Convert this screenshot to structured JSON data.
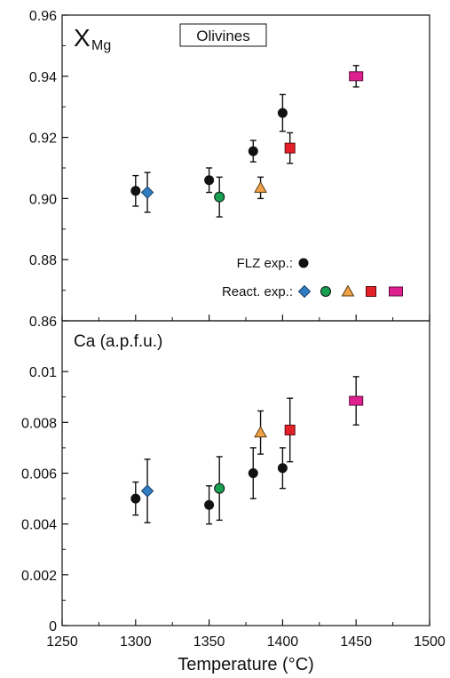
{
  "chart_data": [
    {
      "type": "scatter",
      "panel": "top",
      "title": "Olivines",
      "panel_label": "X",
      "panel_label_sub": "Mg",
      "xlabel": "Temperature (°C)",
      "xlim": [
        1250,
        1500
      ],
      "ylim": [
        0.86,
        0.96
      ],
      "y_ticks": [
        "0.86",
        "0.88",
        "0.90",
        "0.92",
        "0.94",
        "0.96"
      ],
      "grid": false,
      "legend": {
        "placement": "bottom-right",
        "entries": [
          {
            "label": "FLZ exp.:",
            "markers": [
              "circle-black"
            ]
          },
          {
            "label": "React. exp.:",
            "markers": [
              "diamond-blue",
              "circle-green",
              "triangle-orange",
              "square-red",
              "rect-magenta"
            ]
          }
        ]
      },
      "series": [
        {
          "name": "FLZ exp.",
          "marker": "circle-black",
          "points": [
            {
              "x": 1300,
              "y": 0.9025,
              "err": 0.005
            },
            {
              "x": 1350,
              "y": 0.906,
              "err": 0.004
            },
            {
              "x": 1380,
              "y": 0.9155,
              "err": 0.0035
            },
            {
              "x": 1400,
              "y": 0.928,
              "err": 0.006
            }
          ]
        },
        {
          "name": "React. exp.",
          "points": [
            {
              "x": 1308,
              "y": 0.902,
              "err": 0.0065,
              "marker": "diamond-blue"
            },
            {
              "x": 1357,
              "y": 0.9005,
              "err": 0.0065,
              "marker": "circle-green"
            },
            {
              "x": 1385,
              "y": 0.9035,
              "err": 0.0035,
              "marker": "triangle-orange"
            },
            {
              "x": 1405,
              "y": 0.9165,
              "err": 0.005,
              "marker": "square-red"
            },
            {
              "x": 1450,
              "y": 0.94,
              "err": 0.0035,
              "marker": "rect-magenta"
            }
          ]
        }
      ]
    },
    {
      "type": "scatter",
      "panel": "bottom",
      "panel_label": "Ca (a.p.f.u.)",
      "xlabel": "Temperature (°C)",
      "xlim": [
        1250,
        1500
      ],
      "ylim": [
        0,
        0.012
      ],
      "x_ticks": [
        "1250",
        "1300",
        "1350",
        "1400",
        "1450",
        "1500"
      ],
      "y_ticks": [
        "0",
        "0.002",
        "0.004",
        "0.006",
        "0.008",
        "0.01"
      ],
      "grid": false,
      "series": [
        {
          "name": "FLZ exp.",
          "marker": "circle-black",
          "points": [
            {
              "x": 1300,
              "y": 0.005,
              "err": 0.00065
            },
            {
              "x": 1350,
              "y": 0.00475,
              "err": 0.00075
            },
            {
              "x": 1380,
              "y": 0.006,
              "err": 0.001
            },
            {
              "x": 1400,
              "y": 0.0062,
              "err": 0.0008
            }
          ]
        },
        {
          "name": "React. exp.",
          "points": [
            {
              "x": 1308,
              "y": 0.0053,
              "err": 0.00125,
              "marker": "diamond-blue"
            },
            {
              "x": 1357,
              "y": 0.0054,
              "err": 0.00125,
              "marker": "circle-green"
            },
            {
              "x": 1385,
              "y": 0.0076,
              "err": 0.00085,
              "marker": "triangle-orange"
            },
            {
              "x": 1405,
              "y": 0.0077,
              "err": 0.00125,
              "marker": "square-red"
            },
            {
              "x": 1450,
              "y": 0.00885,
              "err": 0.00095,
              "marker": "rect-magenta"
            }
          ]
        }
      ]
    }
  ],
  "colors": {
    "circle-black": "#111111",
    "diamond-blue": "#2f7dc3",
    "circle-green": "#16a050",
    "triangle-orange": "#f0a046",
    "square-red": "#e3202a",
    "rect-magenta": "#e0208f"
  }
}
